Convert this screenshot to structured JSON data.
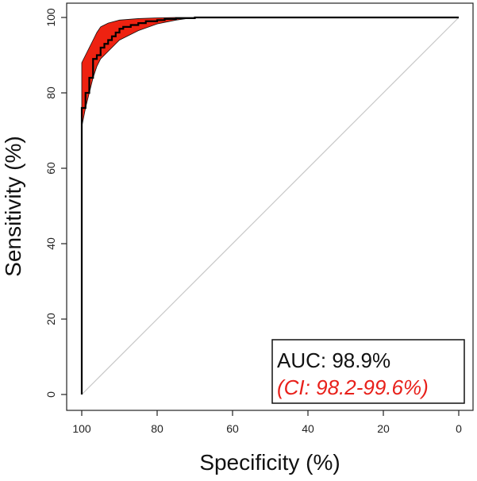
{
  "chart_data": {
    "type": "line",
    "xlabel": "Specificity (%)",
    "ylabel": "Sensitivity (%)",
    "xlim": [
      100,
      0
    ],
    "ylim": [
      0,
      100
    ],
    "x_reversed": true,
    "x_ticks": [
      100,
      80,
      60,
      40,
      20,
      0
    ],
    "y_ticks": [
      0,
      20,
      40,
      60,
      80,
      100
    ],
    "grid": false,
    "reference_line": {
      "from": [
        100,
        0
      ],
      "to": [
        0,
        100
      ],
      "color": "#c8c8c8"
    },
    "series": [
      {
        "type": "step-line",
        "color": "#000000",
        "x": [
          100,
          100,
          100,
          100,
          99,
          99,
          98,
          98,
          97,
          97,
          96,
          96,
          95,
          95,
          94,
          94,
          93,
          93,
          92,
          92,
          91,
          91,
          90,
          90,
          89,
          89,
          87,
          87,
          85,
          85,
          83,
          83,
          80,
          80,
          78,
          78,
          75,
          75,
          70,
          70,
          0
        ],
        "y": [
          0,
          18,
          72,
          76,
          76,
          80,
          80,
          84,
          84,
          89,
          89,
          90,
          90,
          92,
          92,
          93,
          93,
          94,
          94,
          95,
          95,
          96,
          96,
          97,
          97,
          97.5,
          97.5,
          98,
          98,
          98.5,
          98.5,
          99,
          99,
          99.3,
          99.3,
          99.6,
          99.6,
          99.8,
          99.8,
          100,
          100
        ]
      }
    ],
    "confidence_band": {
      "color": "#ee2211",
      "x": [
        100,
        99,
        98,
        97,
        96,
        95,
        93,
        90,
        85,
        80,
        75,
        70,
        0
      ],
      "upper": [
        88,
        90,
        92,
        94,
        96,
        97.5,
        98.5,
        99.3,
        99.7,
        99.9,
        100,
        100,
        100
      ],
      "lower": [
        71,
        76,
        80,
        84,
        87,
        89,
        91,
        94,
        96.5,
        98.3,
        99.3,
        100,
        100
      ]
    },
    "annotation": {
      "lines": [
        {
          "text": "AUC: 98.9%",
          "color": "#111111",
          "style": "normal"
        },
        {
          "text": "(CI: 98.2-99.6%)",
          "color": "#e8201a",
          "style": "italic"
        }
      ],
      "placement": "bottom-right"
    }
  }
}
